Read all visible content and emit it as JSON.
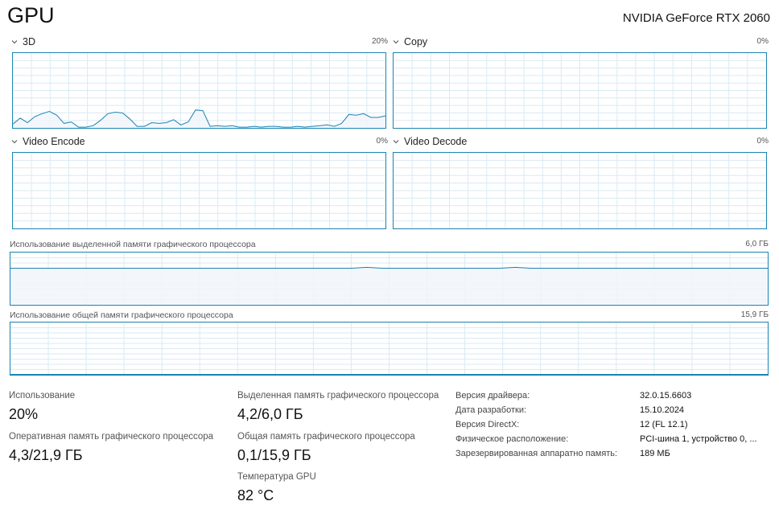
{
  "header": {
    "title": "GPU",
    "gpu_name": "NVIDIA GeForce RTX 2060"
  },
  "engines": [
    {
      "label": "3D",
      "percent": "20%"
    },
    {
      "label": "Copy",
      "percent": "0%"
    },
    {
      "label": "Video Encode",
      "percent": "0%"
    },
    {
      "label": "Video Decode",
      "percent": "0%"
    }
  ],
  "chart_data": [
    {
      "type": "area",
      "title": "3D",
      "ylim": [
        0,
        100
      ],
      "values": [
        5,
        13,
        7,
        15,
        19,
        22,
        17,
        6,
        8,
        1,
        1,
        3,
        10,
        19,
        21,
        20,
        12,
        2,
        2,
        7,
        6,
        7,
        11,
        4,
        8,
        24,
        23,
        2,
        3,
        2,
        3,
        1,
        1,
        2,
        1,
        2,
        2,
        1,
        1,
        2,
        1,
        2,
        3,
        4,
        2,
        6,
        18,
        17,
        19,
        14,
        14,
        16
      ]
    },
    {
      "type": "area",
      "title": "Copy",
      "ylim": [
        0,
        100
      ],
      "values": []
    },
    {
      "type": "area",
      "title": "Video Encode",
      "ylim": [
        0,
        100
      ],
      "values": []
    },
    {
      "type": "area",
      "title": "Video Decode",
      "ylim": [
        0,
        100
      ],
      "values": []
    },
    {
      "type": "area",
      "title": "Использование выделенной памяти графического процессора",
      "ylim": [
        0,
        6.0
      ],
      "values": [
        4.2,
        4.2,
        4.2,
        4.2,
        4.2,
        4.2,
        4.2,
        4.2,
        4.2,
        4.2,
        4.2,
        4.2,
        4.2,
        4.2,
        4.2,
        4.2,
        4.2,
        4.2,
        4.2,
        4.2,
        4.2,
        4.2,
        4.2,
        4.2,
        4.3,
        4.2,
        4.2,
        4.2,
        4.2,
        4.2,
        4.2,
        4.2,
        4.2,
        4.2,
        4.3,
        4.2,
        4.2,
        4.2,
        4.2,
        4.2,
        4.2,
        4.2,
        4.2,
        4.2,
        4.2,
        4.2,
        4.2,
        4.2,
        4.2,
        4.2,
        4.2,
        4.2
      ]
    },
    {
      "type": "area",
      "title": "Использование общей памяти графического процессора",
      "ylim": [
        0,
        15.9
      ],
      "values": [
        0.1,
        0.1,
        0.1,
        0.1,
        0.1,
        0.1,
        0.1,
        0.1,
        0.1,
        0.1,
        0.1,
        0.1,
        0.1,
        0.1,
        0.1,
        0.1,
        0.1,
        0.1,
        0.1,
        0.1
      ]
    }
  ],
  "memory": {
    "dedicated_label": "Использование выделенной памяти графического процессора",
    "dedicated_max": "6,0 ГБ",
    "shared_label": "Использование общей памяти графического процессора",
    "shared_max": "15,9 ГБ"
  },
  "stats": {
    "utilization_label": "Использование",
    "utilization_value": "20%",
    "gpu_memory_label": "Оперативная память графического процессора",
    "gpu_memory_value": "4,3/21,9 ГБ",
    "dedicated_label": "Выделенная память графического процессора",
    "dedicated_value": "4,2/6,0 ГБ",
    "shared_label": "Общая память графического процессора",
    "shared_value": "0,1/15,9 ГБ",
    "temp_label": "Температура GPU",
    "temp_value": "82 °C"
  },
  "details": [
    {
      "label": "Версия драйвера:",
      "value": "32.0.15.6603"
    },
    {
      "label": "Дата разработки:",
      "value": "15.10.2024"
    },
    {
      "label": "Версия DirectX:",
      "value": "12 (FL 12.1)"
    },
    {
      "label": "Физическое расположение:",
      "value": "PCI-шина 1, устройство 0, ..."
    },
    {
      "label": "Зарезервированная аппаратно память:",
      "value": "189 МБ"
    }
  ],
  "colors": {
    "accent": "#1a83b2",
    "grid": "#d9eaf3",
    "fill": "#f1f6fa"
  }
}
